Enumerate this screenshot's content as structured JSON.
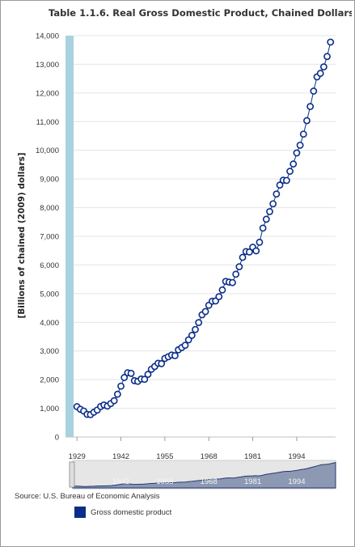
{
  "chart_data": {
    "type": "line",
    "title": "Table 1.1.6. Real Gross Domestic Product, Chained Dollars",
    "ylabel": "[Billions of chained (2009) dollars]",
    "xlabel": "",
    "ylim": [
      0,
      14000
    ],
    "yticks": [
      0,
      1000,
      2000,
      3000,
      4000,
      5000,
      6000,
      7000,
      8000,
      9000,
      10000,
      11000,
      12000,
      13000,
      14000
    ],
    "ytick_labels": [
      "0",
      "1,000",
      "2,000",
      "3,000",
      "4,000",
      "5,000",
      "6,000",
      "7,000",
      "8,000",
      "9,000",
      "10,000",
      "11,000",
      "12,000",
      "13,000",
      "14,000"
    ],
    "xlim": [
      1929,
      2005
    ],
    "xticks": [
      1929,
      1942,
      1955,
      1968,
      1981,
      1994
    ],
    "xtick_labels": [
      "1929",
      "1942",
      "1955",
      "1968",
      "1981",
      "1994"
    ],
    "navigator_labels": [
      "1942",
      "1955",
      "1968",
      "1981",
      "1994"
    ],
    "grid": true,
    "legend_position": "bottom-left",
    "series": [
      {
        "name": "Gross domestic product",
        "color": "#0b2d8a",
        "x": [
          1929,
          1930,
          1931,
          1932,
          1933,
          1934,
          1935,
          1936,
          1937,
          1938,
          1939,
          1940,
          1941,
          1942,
          1943,
          1944,
          1945,
          1946,
          1947,
          1948,
          1949,
          1950,
          1951,
          1952,
          1953,
          1954,
          1955,
          1956,
          1957,
          1958,
          1959,
          1960,
          1961,
          1962,
          1963,
          1964,
          1965,
          1966,
          1967,
          1968,
          1969,
          1970,
          1971,
          1972,
          1973,
          1974,
          1975,
          1976,
          1977,
          1978,
          1979,
          1980,
          1981,
          1982,
          1983,
          1984,
          1985,
          1986,
          1987,
          1988,
          1989,
          1990,
          1991,
          1992,
          1993,
          1994,
          1995,
          1996,
          1997,
          1998,
          1999,
          2000,
          2001,
          2002,
          2003,
          2004
        ],
        "values": [
          1057,
          965,
          904,
          789,
          779,
          863,
          939,
          1061,
          1115,
          1078,
          1165,
          1266,
          1491,
          1772,
          2073,
          2240,
          2218,
          1963,
          1940,
          2021,
          2011,
          2184,
          2361,
          2457,
          2571,
          2556,
          2739,
          2797,
          2857,
          2836,
          3040,
          3118,
          3197,
          3387,
          3544,
          3748,
          3990,
          4262,
          4376,
          4594,
          4735,
          4744,
          4893,
          5128,
          5426,
          5400,
          5385,
          5676,
          5938,
          6264,
          6467,
          6451,
          6618,
          6492,
          6792,
          7285,
          7594,
          7861,
          8133,
          8475,
          8787,
          8956,
          8948,
          9267,
          9521,
          9906,
          10176,
          10564,
          11034,
          11526,
          12065,
          12560,
          12682,
          12909,
          13271,
          13774
        ]
      }
    ]
  },
  "source": "Source: U.S. Bureau of Economic Analysis"
}
